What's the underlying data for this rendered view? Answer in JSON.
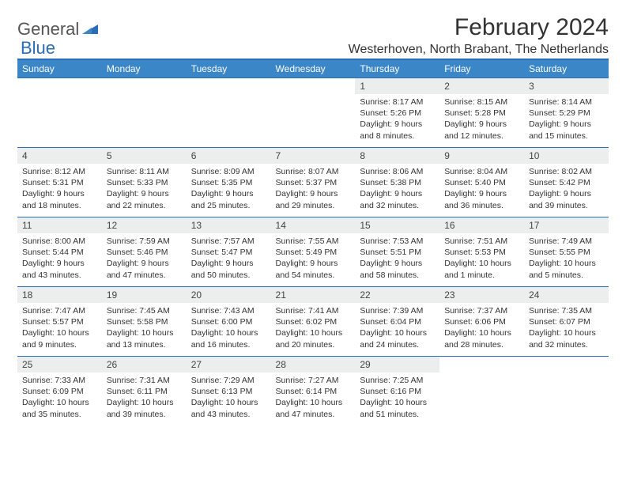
{
  "brand": {
    "name_a": "General",
    "name_b": "Blue"
  },
  "title": "February 2024",
  "location": "Westerhoven, North Brabant, The Netherlands",
  "colors": {
    "header_bg": "#3b86c7",
    "header_border": "#2a6db8",
    "row_border": "#2a6db8",
    "daynum_bg": "#eceded",
    "text": "#333333",
    "brand_gray": "#555555",
    "brand_blue": "#2a6db8",
    "background": "#ffffff"
  },
  "typography": {
    "title_fontsize": 30,
    "location_fontsize": 16,
    "dayheader_fontsize": 12,
    "daynum_fontsize": 12,
    "body_fontsize": 10.5,
    "font_family": "Arial"
  },
  "weekdays": [
    "Sunday",
    "Monday",
    "Tuesday",
    "Wednesday",
    "Thursday",
    "Friday",
    "Saturday"
  ],
  "weeks": [
    [
      {
        "num": "",
        "sunrise": "",
        "sunset": "",
        "daylight": ""
      },
      {
        "num": "",
        "sunrise": "",
        "sunset": "",
        "daylight": ""
      },
      {
        "num": "",
        "sunrise": "",
        "sunset": "",
        "daylight": ""
      },
      {
        "num": "",
        "sunrise": "",
        "sunset": "",
        "daylight": ""
      },
      {
        "num": "1",
        "sunrise": "Sunrise: 8:17 AM",
        "sunset": "Sunset: 5:26 PM",
        "daylight": "Daylight: 9 hours and 8 minutes."
      },
      {
        "num": "2",
        "sunrise": "Sunrise: 8:15 AM",
        "sunset": "Sunset: 5:28 PM",
        "daylight": "Daylight: 9 hours and 12 minutes."
      },
      {
        "num": "3",
        "sunrise": "Sunrise: 8:14 AM",
        "sunset": "Sunset: 5:29 PM",
        "daylight": "Daylight: 9 hours and 15 minutes."
      }
    ],
    [
      {
        "num": "4",
        "sunrise": "Sunrise: 8:12 AM",
        "sunset": "Sunset: 5:31 PM",
        "daylight": "Daylight: 9 hours and 18 minutes."
      },
      {
        "num": "5",
        "sunrise": "Sunrise: 8:11 AM",
        "sunset": "Sunset: 5:33 PM",
        "daylight": "Daylight: 9 hours and 22 minutes."
      },
      {
        "num": "6",
        "sunrise": "Sunrise: 8:09 AM",
        "sunset": "Sunset: 5:35 PM",
        "daylight": "Daylight: 9 hours and 25 minutes."
      },
      {
        "num": "7",
        "sunrise": "Sunrise: 8:07 AM",
        "sunset": "Sunset: 5:37 PM",
        "daylight": "Daylight: 9 hours and 29 minutes."
      },
      {
        "num": "8",
        "sunrise": "Sunrise: 8:06 AM",
        "sunset": "Sunset: 5:38 PM",
        "daylight": "Daylight: 9 hours and 32 minutes."
      },
      {
        "num": "9",
        "sunrise": "Sunrise: 8:04 AM",
        "sunset": "Sunset: 5:40 PM",
        "daylight": "Daylight: 9 hours and 36 minutes."
      },
      {
        "num": "10",
        "sunrise": "Sunrise: 8:02 AM",
        "sunset": "Sunset: 5:42 PM",
        "daylight": "Daylight: 9 hours and 39 minutes."
      }
    ],
    [
      {
        "num": "11",
        "sunrise": "Sunrise: 8:00 AM",
        "sunset": "Sunset: 5:44 PM",
        "daylight": "Daylight: 9 hours and 43 minutes."
      },
      {
        "num": "12",
        "sunrise": "Sunrise: 7:59 AM",
        "sunset": "Sunset: 5:46 PM",
        "daylight": "Daylight: 9 hours and 47 minutes."
      },
      {
        "num": "13",
        "sunrise": "Sunrise: 7:57 AM",
        "sunset": "Sunset: 5:47 PM",
        "daylight": "Daylight: 9 hours and 50 minutes."
      },
      {
        "num": "14",
        "sunrise": "Sunrise: 7:55 AM",
        "sunset": "Sunset: 5:49 PM",
        "daylight": "Daylight: 9 hours and 54 minutes."
      },
      {
        "num": "15",
        "sunrise": "Sunrise: 7:53 AM",
        "sunset": "Sunset: 5:51 PM",
        "daylight": "Daylight: 9 hours and 58 minutes."
      },
      {
        "num": "16",
        "sunrise": "Sunrise: 7:51 AM",
        "sunset": "Sunset: 5:53 PM",
        "daylight": "Daylight: 10 hours and 1 minute."
      },
      {
        "num": "17",
        "sunrise": "Sunrise: 7:49 AM",
        "sunset": "Sunset: 5:55 PM",
        "daylight": "Daylight: 10 hours and 5 minutes."
      }
    ],
    [
      {
        "num": "18",
        "sunrise": "Sunrise: 7:47 AM",
        "sunset": "Sunset: 5:57 PM",
        "daylight": "Daylight: 10 hours and 9 minutes."
      },
      {
        "num": "19",
        "sunrise": "Sunrise: 7:45 AM",
        "sunset": "Sunset: 5:58 PM",
        "daylight": "Daylight: 10 hours and 13 minutes."
      },
      {
        "num": "20",
        "sunrise": "Sunrise: 7:43 AM",
        "sunset": "Sunset: 6:00 PM",
        "daylight": "Daylight: 10 hours and 16 minutes."
      },
      {
        "num": "21",
        "sunrise": "Sunrise: 7:41 AM",
        "sunset": "Sunset: 6:02 PM",
        "daylight": "Daylight: 10 hours and 20 minutes."
      },
      {
        "num": "22",
        "sunrise": "Sunrise: 7:39 AM",
        "sunset": "Sunset: 6:04 PM",
        "daylight": "Daylight: 10 hours and 24 minutes."
      },
      {
        "num": "23",
        "sunrise": "Sunrise: 7:37 AM",
        "sunset": "Sunset: 6:06 PM",
        "daylight": "Daylight: 10 hours and 28 minutes."
      },
      {
        "num": "24",
        "sunrise": "Sunrise: 7:35 AM",
        "sunset": "Sunset: 6:07 PM",
        "daylight": "Daylight: 10 hours and 32 minutes."
      }
    ],
    [
      {
        "num": "25",
        "sunrise": "Sunrise: 7:33 AM",
        "sunset": "Sunset: 6:09 PM",
        "daylight": "Daylight: 10 hours and 35 minutes."
      },
      {
        "num": "26",
        "sunrise": "Sunrise: 7:31 AM",
        "sunset": "Sunset: 6:11 PM",
        "daylight": "Daylight: 10 hours and 39 minutes."
      },
      {
        "num": "27",
        "sunrise": "Sunrise: 7:29 AM",
        "sunset": "Sunset: 6:13 PM",
        "daylight": "Daylight: 10 hours and 43 minutes."
      },
      {
        "num": "28",
        "sunrise": "Sunrise: 7:27 AM",
        "sunset": "Sunset: 6:14 PM",
        "daylight": "Daylight: 10 hours and 47 minutes."
      },
      {
        "num": "29",
        "sunrise": "Sunrise: 7:25 AM",
        "sunset": "Sunset: 6:16 PM",
        "daylight": "Daylight: 10 hours and 51 minutes."
      },
      {
        "num": "",
        "sunrise": "",
        "sunset": "",
        "daylight": ""
      },
      {
        "num": "",
        "sunrise": "",
        "sunset": "",
        "daylight": ""
      }
    ]
  ]
}
